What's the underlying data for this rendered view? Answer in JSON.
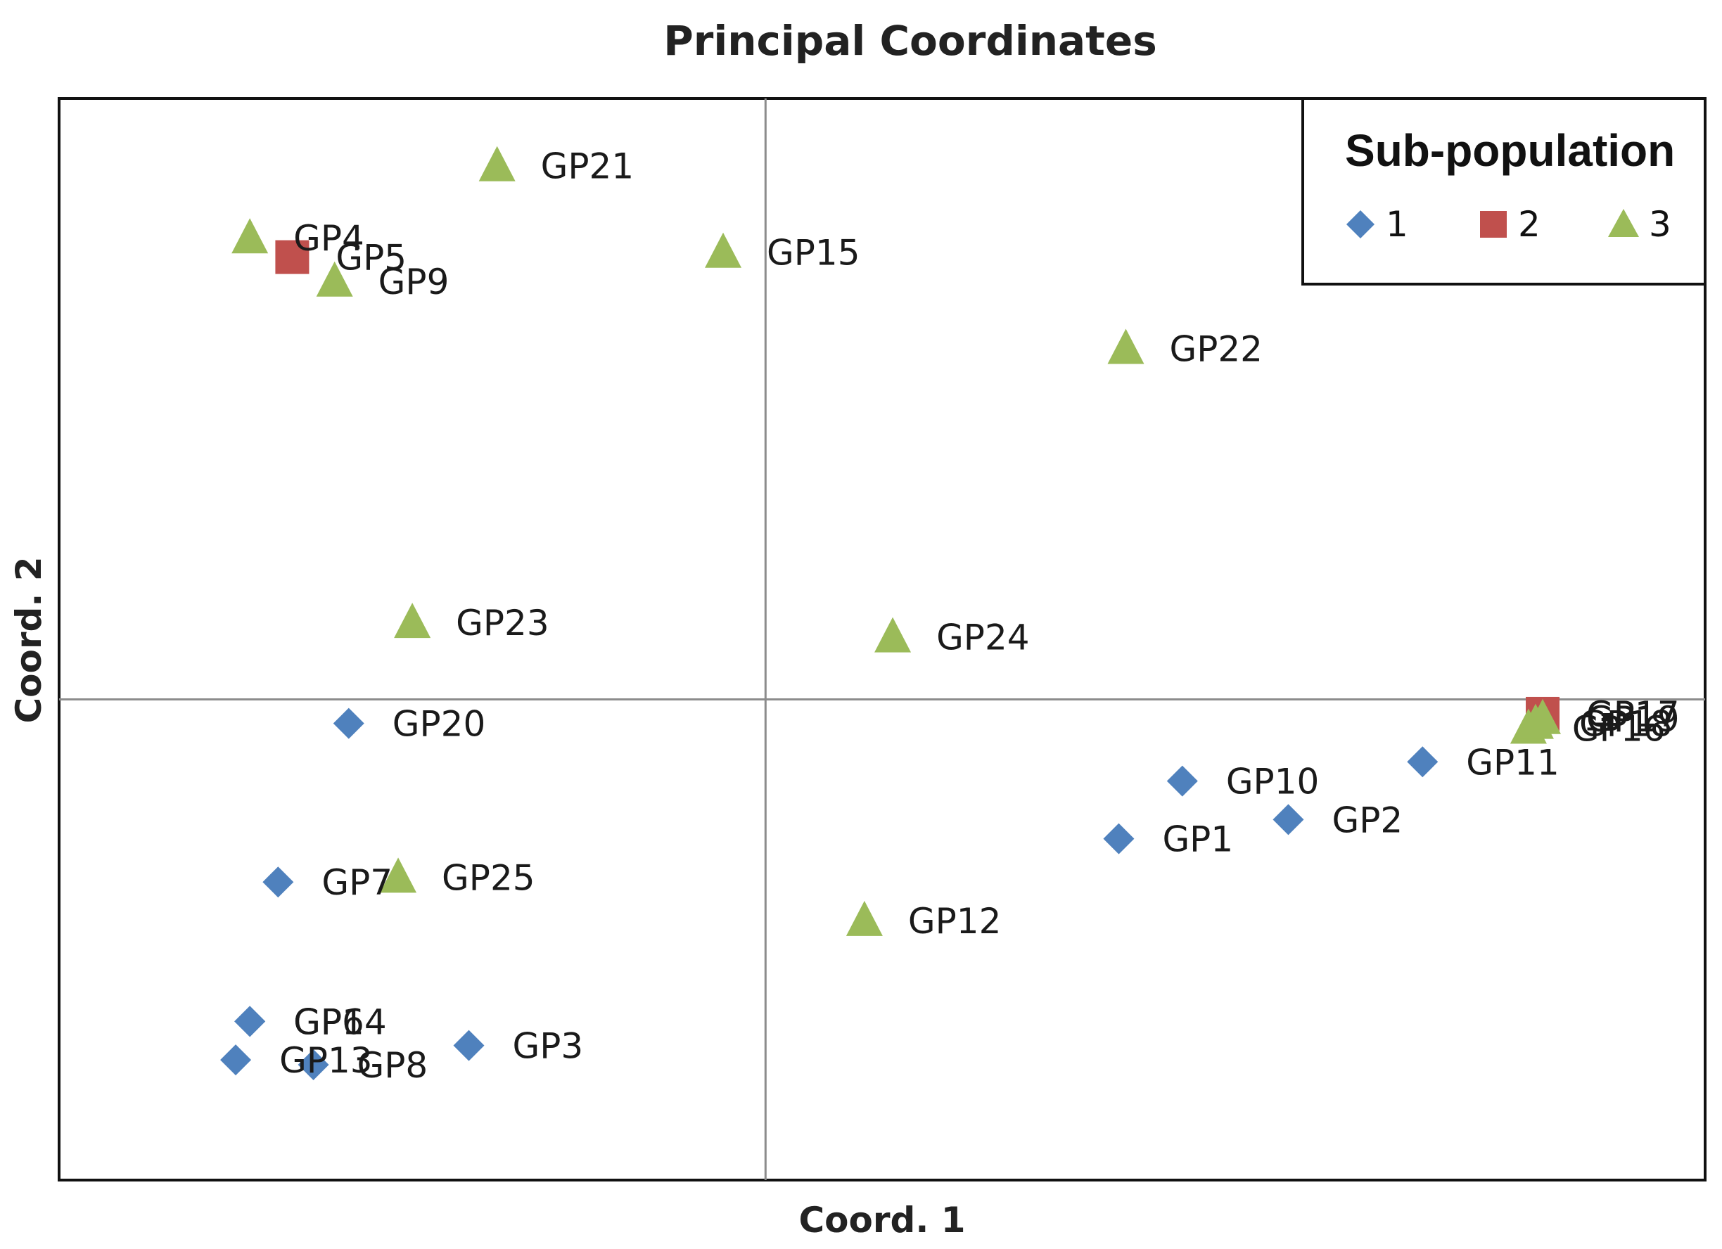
{
  "chart_data": {
    "type": "scatter",
    "title": "Principal Coordinates",
    "xlabel": "Coord. 1",
    "ylabel": "Coord. 2",
    "xlim": [
      -1.0,
      1.33
    ],
    "ylim": [
      -1.0,
      1.25
    ],
    "grid": false,
    "zero_lines": true,
    "legend": {
      "title": "Sub-population",
      "position": "top-right"
    },
    "series": [
      {
        "name": "1",
        "marker": "diamond",
        "color": "#4F81BD",
        "points": [
          {
            "label": "GP1",
            "x": 0.5,
            "y": -0.29
          },
          {
            "label": "GP2",
            "x": 0.74,
            "y": -0.25
          },
          {
            "label": "GP3",
            "x": -0.42,
            "y": -0.72
          },
          {
            "label": "GP6",
            "x": -0.73,
            "y": -0.67
          },
          {
            "label": "GP7",
            "x": -0.69,
            "y": -0.38
          },
          {
            "label": "GP8",
            "x": -0.64,
            "y": -0.76
          },
          {
            "label": "GP10",
            "x": 0.59,
            "y": -0.17
          },
          {
            "label": "GP11",
            "x": 0.93,
            "y": -0.13
          },
          {
            "label": "GP13",
            "x": -0.75,
            "y": -0.75
          },
          {
            "label": "GP14",
            "x": -0.73,
            "y": -0.67
          },
          {
            "label": "GP20",
            "x": -0.59,
            "y": -0.05
          }
        ]
      },
      {
        "name": "2",
        "marker": "square",
        "color": "#C0504D",
        "points": [
          {
            "label": "GP5",
            "x": -0.67,
            "y": 0.92
          },
          {
            "label": "GP17",
            "x": 1.1,
            "y": -0.03
          }
        ]
      },
      {
        "name": "3",
        "marker": "triangle",
        "color": "#9BBB59",
        "points": [
          {
            "label": "GP4",
            "x": -0.73,
            "y": 0.96
          },
          {
            "label": "GP9",
            "x": -0.61,
            "y": 0.87
          },
          {
            "label": "GP12",
            "x": 0.14,
            "y": -0.46
          },
          {
            "label": "GP15",
            "x": -0.06,
            "y": 0.93
          },
          {
            "label": "GP16",
            "x": 1.08,
            "y": -0.06
          },
          {
            "label": "GP18",
            "x": 1.09,
            "y": -0.05
          },
          {
            "label": "GP19",
            "x": 1.1,
            "y": -0.04
          },
          {
            "label": "GP21",
            "x": -0.38,
            "y": 1.11
          },
          {
            "label": "GP22",
            "x": 0.51,
            "y": 0.73
          },
          {
            "label": "GP23",
            "x": -0.5,
            "y": 0.16
          },
          {
            "label": "GP24",
            "x": 0.18,
            "y": 0.13
          },
          {
            "label": "GP25",
            "x": -0.52,
            "y": -0.37
          }
        ]
      }
    ]
  }
}
